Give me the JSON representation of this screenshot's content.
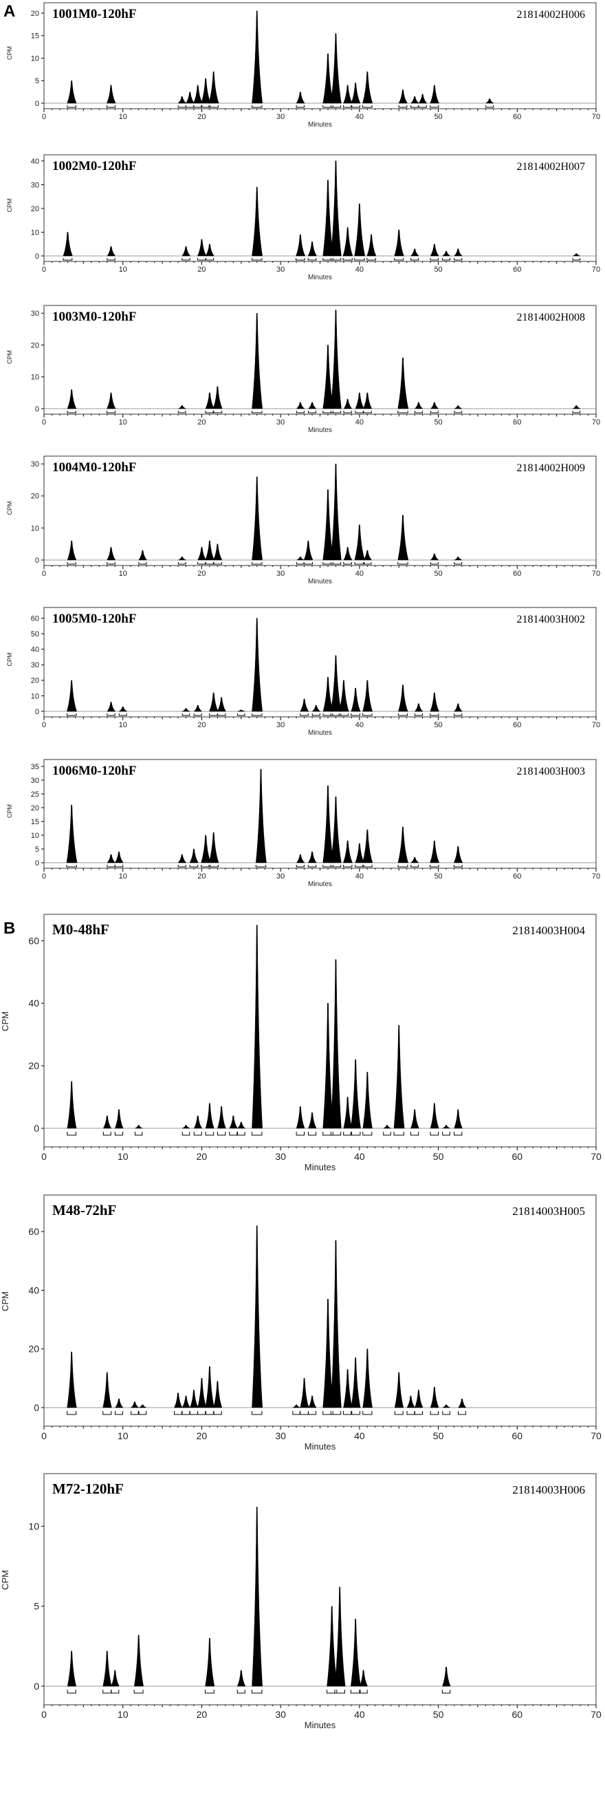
{
  "panel_labels": [
    "A",
    "B"
  ],
  "chart_data": [
    {
      "type": "area",
      "panel": "A",
      "title": "1001M0-120hF",
      "sample_id": "21814002H006",
      "xlabel": "Minutes",
      "ylabel": "CPM",
      "xlim": [
        0,
        70
      ],
      "ylim": [
        0,
        22
      ],
      "xticks": [
        0,
        10,
        20,
        30,
        40,
        50,
        60,
        70
      ],
      "yticks": [
        0,
        5,
        10,
        15,
        20
      ],
      "peaks": [
        [
          3.5,
          5
        ],
        [
          8.5,
          4
        ],
        [
          17.5,
          1.5
        ],
        [
          18.5,
          2.5
        ],
        [
          19.5,
          4
        ],
        [
          20.5,
          5.5
        ],
        [
          21.5,
          7
        ],
        [
          27,
          20.5
        ],
        [
          32.5,
          2.5
        ],
        [
          36,
          11
        ],
        [
          37,
          15.5
        ],
        [
          38.5,
          4
        ],
        [
          39.5,
          4.5
        ],
        [
          41,
          7
        ],
        [
          45.5,
          3
        ],
        [
          47,
          1.5
        ],
        [
          48,
          2
        ],
        [
          49.5,
          4
        ],
        [
          56.5,
          1
        ]
      ]
    },
    {
      "type": "area",
      "panel": "A",
      "title": "1002M0-120hF",
      "sample_id": "21814002H007",
      "xlabel": "Minutes",
      "ylabel": "CPM",
      "xlim": [
        0,
        70
      ],
      "ylim": [
        0,
        42
      ],
      "xticks": [
        0,
        10,
        20,
        30,
        40,
        50,
        60,
        70
      ],
      "yticks": [
        0,
        10,
        20,
        30,
        40
      ],
      "peaks": [
        [
          3,
          10
        ],
        [
          8.5,
          4
        ],
        [
          18,
          4
        ],
        [
          20,
          7
        ],
        [
          21,
          5
        ],
        [
          27,
          29
        ],
        [
          32.5,
          9
        ],
        [
          34,
          6
        ],
        [
          36,
          32
        ],
        [
          37,
          40
        ],
        [
          38.5,
          12
        ],
        [
          40,
          22
        ],
        [
          41.5,
          9
        ],
        [
          45,
          11
        ],
        [
          47,
          3
        ],
        [
          49.5,
          5
        ],
        [
          51,
          2
        ],
        [
          52.5,
          3
        ],
        [
          67.5,
          1
        ]
      ]
    },
    {
      "type": "area",
      "panel": "A",
      "title": "1003M0-120hF",
      "sample_id": "21814002H008",
      "xlabel": "Minutes",
      "ylabel": "CPM",
      "xlim": [
        0,
        70
      ],
      "ylim": [
        0,
        32
      ],
      "xticks": [
        0,
        10,
        20,
        30,
        40,
        50,
        60,
        70
      ],
      "yticks": [
        0,
        10,
        20,
        30
      ],
      "peaks": [
        [
          3.5,
          6
        ],
        [
          8.5,
          5
        ],
        [
          17.5,
          1
        ],
        [
          21,
          5
        ],
        [
          22,
          7
        ],
        [
          27,
          30
        ],
        [
          32.5,
          2
        ],
        [
          34,
          2
        ],
        [
          36,
          20
        ],
        [
          37,
          31
        ],
        [
          38.5,
          3
        ],
        [
          40,
          5
        ],
        [
          41,
          5
        ],
        [
          45.5,
          16
        ],
        [
          47.5,
          2
        ],
        [
          49.5,
          2
        ],
        [
          52.5,
          1
        ],
        [
          67.5,
          1
        ]
      ]
    },
    {
      "type": "area",
      "panel": "A",
      "title": "1004M0-120hF",
      "sample_id": "21814002H009",
      "xlabel": "Minutes",
      "ylabel": "CPM",
      "xlim": [
        0,
        70
      ],
      "ylim": [
        0,
        32
      ],
      "xticks": [
        0,
        10,
        20,
        30,
        40,
        50,
        60,
        70
      ],
      "yticks": [
        0,
        10,
        20,
        30
      ],
      "peaks": [
        [
          3.5,
          6
        ],
        [
          8.5,
          4
        ],
        [
          12.5,
          3
        ],
        [
          17.5,
          1
        ],
        [
          20,
          4
        ],
        [
          21,
          6
        ],
        [
          22,
          5
        ],
        [
          27,
          26
        ],
        [
          32.5,
          1
        ],
        [
          33.5,
          6
        ],
        [
          36,
          22
        ],
        [
          37,
          30
        ],
        [
          38.5,
          4
        ],
        [
          40,
          11
        ],
        [
          41,
          3
        ],
        [
          45.5,
          14
        ],
        [
          49.5,
          2
        ],
        [
          52.5,
          1
        ]
      ]
    },
    {
      "type": "area",
      "panel": "A",
      "title": "1005M0-120hF",
      "sample_id": "21814003H002",
      "xlabel": "Minutes",
      "ylabel": "CPM",
      "xlim": [
        0,
        70
      ],
      "ylim": [
        0,
        66
      ],
      "xticks": [
        0,
        10,
        20,
        30,
        40,
        50,
        60,
        70
      ],
      "yticks": [
        0,
        10,
        20,
        30,
        40,
        50,
        60
      ],
      "peaks": [
        [
          3.5,
          20
        ],
        [
          8.5,
          6
        ],
        [
          10,
          3
        ],
        [
          18,
          2
        ],
        [
          19.5,
          4
        ],
        [
          21.5,
          12
        ],
        [
          22.5,
          9
        ],
        [
          25,
          1
        ],
        [
          27,
          60
        ],
        [
          33,
          8
        ],
        [
          34.5,
          4
        ],
        [
          36,
          22
        ],
        [
          37,
          36
        ],
        [
          38,
          20
        ],
        [
          39.5,
          15
        ],
        [
          41,
          20
        ],
        [
          45.5,
          17
        ],
        [
          47.5,
          5
        ],
        [
          49.5,
          12
        ],
        [
          52.5,
          5
        ]
      ]
    },
    {
      "type": "area",
      "panel": "A",
      "title": "1006M0-120hF",
      "sample_id": "21814003H003",
      "xlabel": "Minutes",
      "ylabel": "CPM",
      "xlim": [
        0,
        70
      ],
      "ylim": [
        0,
        37
      ],
      "xticks": [
        0,
        10,
        20,
        30,
        40,
        50,
        60,
        70
      ],
      "yticks": [
        0,
        5,
        10,
        15,
        20,
        25,
        30,
        35
      ],
      "peaks": [
        [
          3.5,
          21
        ],
        [
          8.5,
          3
        ],
        [
          9.5,
          4
        ],
        [
          17.5,
          3
        ],
        [
          19,
          5
        ],
        [
          20.5,
          10
        ],
        [
          21.5,
          11
        ],
        [
          27.5,
          34
        ],
        [
          32.5,
          3
        ],
        [
          34,
          4
        ],
        [
          36,
          28
        ],
        [
          37,
          24
        ],
        [
          38.5,
          8
        ],
        [
          40,
          7
        ],
        [
          41,
          12
        ],
        [
          45.5,
          13
        ],
        [
          47,
          2
        ],
        [
          49.5,
          8
        ],
        [
          52.5,
          6
        ]
      ]
    },
    {
      "type": "area",
      "panel": "B",
      "title": "M0-48hF",
      "sample_id": "21814003H004",
      "xlabel": "Minutes",
      "ylabel": "CPM",
      "xlim": [
        0,
        70
      ],
      "ylim": [
        0,
        68
      ],
      "xticks": [
        0,
        10,
        20,
        30,
        40,
        50,
        60,
        70
      ],
      "yticks": [
        0,
        20,
        40,
        60
      ],
      "peaks": [
        [
          3.5,
          15
        ],
        [
          8,
          4
        ],
        [
          9.5,
          6
        ],
        [
          12,
          1
        ],
        [
          18,
          1
        ],
        [
          19.5,
          4
        ],
        [
          21,
          8
        ],
        [
          22.5,
          7
        ],
        [
          24,
          4
        ],
        [
          25,
          2
        ],
        [
          27,
          65
        ],
        [
          32.5,
          7
        ],
        [
          34,
          5
        ],
        [
          36,
          40
        ],
        [
          37,
          54
        ],
        [
          38.5,
          10
        ],
        [
          39.5,
          22
        ],
        [
          41,
          18
        ],
        [
          43.5,
          1
        ],
        [
          45,
          33
        ],
        [
          47,
          6
        ],
        [
          49.5,
          8
        ],
        [
          51,
          1
        ],
        [
          52.5,
          6
        ]
      ]
    },
    {
      "type": "area",
      "panel": "B",
      "title": "M48-72hF",
      "sample_id": "21814003H005",
      "xlabel": "Minutes",
      "ylabel": "CPM",
      "xlim": [
        0,
        70
      ],
      "ylim": [
        0,
        72
      ],
      "xticks": [
        0,
        10,
        20,
        30,
        40,
        50,
        60,
        70
      ],
      "yticks": [
        0,
        20,
        40,
        60
      ],
      "peaks": [
        [
          3.5,
          19
        ],
        [
          8,
          12
        ],
        [
          9.5,
          3
        ],
        [
          11.5,
          2
        ],
        [
          12.5,
          1
        ],
        [
          17,
          5
        ],
        [
          18,
          4
        ],
        [
          19,
          6
        ],
        [
          20,
          10
        ],
        [
          21,
          14
        ],
        [
          22,
          9
        ],
        [
          27,
          62
        ],
        [
          32,
          1
        ],
        [
          33,
          10
        ],
        [
          34,
          4
        ],
        [
          36,
          37
        ],
        [
          37,
          57
        ],
        [
          38.5,
          13
        ],
        [
          39.5,
          17
        ],
        [
          41,
          20
        ],
        [
          45,
          12
        ],
        [
          46.5,
          4
        ],
        [
          47.5,
          6
        ],
        [
          49.5,
          7
        ],
        [
          51,
          1
        ],
        [
          53,
          3
        ]
      ]
    },
    {
      "type": "area",
      "panel": "B",
      "title": "M72-120hF",
      "sample_id": "21814003H006",
      "xlabel": "Minutes",
      "ylabel": "CPM",
      "xlim": [
        0,
        70
      ],
      "ylim": [
        0,
        13.2
      ],
      "xticks": [
        0,
        10,
        20,
        30,
        40,
        50,
        60,
        70
      ],
      "yticks": [
        0,
        5,
        10
      ],
      "peaks": [
        [
          3.5,
          2.2
        ],
        [
          8,
          2.2
        ],
        [
          9,
          1
        ],
        [
          12,
          3.2
        ],
        [
          21,
          3
        ],
        [
          25,
          1
        ],
        [
          27,
          11.2
        ],
        [
          36.5,
          5
        ],
        [
          37.5,
          6.2
        ],
        [
          39.5,
          4.2
        ],
        [
          40.5,
          1
        ],
        [
          51,
          1.2
        ]
      ]
    }
  ]
}
